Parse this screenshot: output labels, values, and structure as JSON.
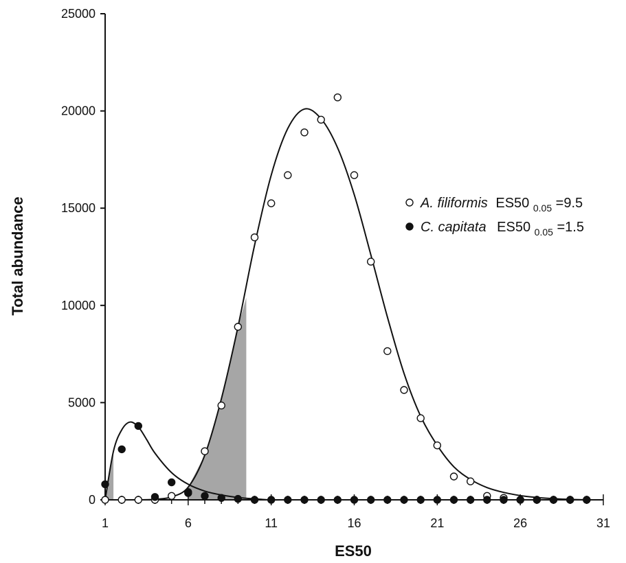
{
  "chart_data": {
    "type": "scatter",
    "xlabel": "ES50",
    "ylabel": "Total abundance",
    "xlim": [
      1,
      31
    ],
    "ylim": [
      0,
      25000
    ],
    "x_ticks": [
      1,
      6,
      11,
      16,
      21,
      26,
      31
    ],
    "y_ticks": [
      0,
      5000,
      10000,
      15000,
      20000,
      25000
    ],
    "grid": false,
    "legend_position": "right",
    "series": [
      {
        "name_italic": "A. filiformis",
        "label_prefix": "ES50",
        "label_sub": "0.05",
        "label_value": "=9.5",
        "marker": "open-circle",
        "es50_005": 9.5,
        "points": [
          [
            1,
            0
          ],
          [
            2,
            0
          ],
          [
            3,
            0
          ],
          [
            4,
            0
          ],
          [
            5,
            200
          ],
          [
            6,
            400
          ],
          [
            7,
            2500
          ],
          [
            8,
            4850
          ],
          [
            9,
            8900
          ],
          [
            10,
            13500
          ],
          [
            11,
            15250
          ],
          [
            12,
            16700
          ],
          [
            13,
            18900
          ],
          [
            14,
            19550
          ],
          [
            15,
            20700
          ],
          [
            16,
            16700
          ],
          [
            17,
            12250
          ],
          [
            18,
            7650
          ],
          [
            19,
            5650
          ],
          [
            20,
            4200
          ],
          [
            21,
            2800
          ],
          [
            22,
            1200
          ],
          [
            23,
            950
          ],
          [
            24,
            200
          ],
          [
            25,
            100
          ],
          [
            26,
            0
          ],
          [
            27,
            0
          ],
          [
            28,
            0
          ],
          [
            29,
            0
          ],
          [
            30,
            0
          ]
        ],
        "curve": [
          [
            1,
            0
          ],
          [
            2,
            0
          ],
          [
            3,
            0
          ],
          [
            4,
            30
          ],
          [
            5,
            150
          ],
          [
            6,
            650
          ],
          [
            7,
            2300
          ],
          [
            8,
            5200
          ],
          [
            9,
            8900
          ],
          [
            10,
            13100
          ],
          [
            11,
            16700
          ],
          [
            12,
            19100
          ],
          [
            13,
            20100
          ],
          [
            14,
            19600
          ],
          [
            15,
            18100
          ],
          [
            16,
            15700
          ],
          [
            17,
            12600
          ],
          [
            18,
            9400
          ],
          [
            19,
            6500
          ],
          [
            20,
            4300
          ],
          [
            21,
            2800
          ],
          [
            22,
            1700
          ],
          [
            23,
            1050
          ],
          [
            24,
            630
          ],
          [
            25,
            380
          ],
          [
            26,
            220
          ],
          [
            27,
            120
          ],
          [
            28,
            60
          ],
          [
            29,
            20
          ],
          [
            30,
            0
          ]
        ],
        "shaded_area": [
          [
            6,
            650
          ],
          [
            7,
            2300
          ],
          [
            8,
            5200
          ],
          [
            9,
            8900
          ],
          [
            9.5,
            10400
          ]
        ]
      },
      {
        "name_italic": "C. capitata",
        "label_prefix": "ES50",
        "label_sub": "0.05",
        "label_value": "=1.5",
        "marker": "filled-circle",
        "es50_005": 1.5,
        "points": [
          [
            1,
            800
          ],
          [
            2,
            2600
          ],
          [
            3,
            3800
          ],
          [
            4,
            150
          ],
          [
            5,
            900
          ],
          [
            6,
            350
          ],
          [
            7,
            200
          ],
          [
            8,
            100
          ],
          [
            9,
            50
          ],
          [
            10,
            0
          ],
          [
            11,
            0
          ],
          [
            12,
            0
          ],
          [
            13,
            0
          ],
          [
            14,
            0
          ],
          [
            15,
            0
          ],
          [
            16,
            0
          ],
          [
            17,
            0
          ],
          [
            18,
            0
          ],
          [
            19,
            0
          ],
          [
            20,
            0
          ],
          [
            21,
            0
          ],
          [
            22,
            0
          ],
          [
            23,
            0
          ],
          [
            24,
            0
          ],
          [
            25,
            0
          ],
          [
            26,
            0
          ],
          [
            27,
            0
          ],
          [
            28,
            0
          ],
          [
            29,
            0
          ],
          [
            30,
            0
          ]
        ],
        "curve": [
          [
            1,
            0
          ],
          [
            1.5,
            2500
          ],
          [
            2,
            3600
          ],
          [
            2.5,
            4000
          ],
          [
            3,
            3750
          ],
          [
            3.5,
            3100
          ],
          [
            4,
            2400
          ],
          [
            5,
            1400
          ],
          [
            6,
            800
          ],
          [
            7,
            450
          ],
          [
            8,
            250
          ],
          [
            9,
            120
          ],
          [
            10,
            50
          ],
          [
            11,
            0
          ],
          [
            12,
            0
          ],
          [
            14,
            0
          ],
          [
            16,
            0
          ],
          [
            18,
            0
          ],
          [
            20,
            0
          ],
          [
            22,
            0
          ],
          [
            24,
            0
          ],
          [
            26,
            0
          ],
          [
            28,
            0
          ],
          [
            30,
            0
          ]
        ],
        "shaded_area": [
          [
            1,
            0
          ],
          [
            1.5,
            2500
          ]
        ]
      }
    ]
  },
  "colors": {
    "axis": "#111111",
    "curve": "#111111",
    "shade": "#a6a6a6",
    "marker_open_fill": "#ffffff",
    "marker_fill": "#111111"
  }
}
